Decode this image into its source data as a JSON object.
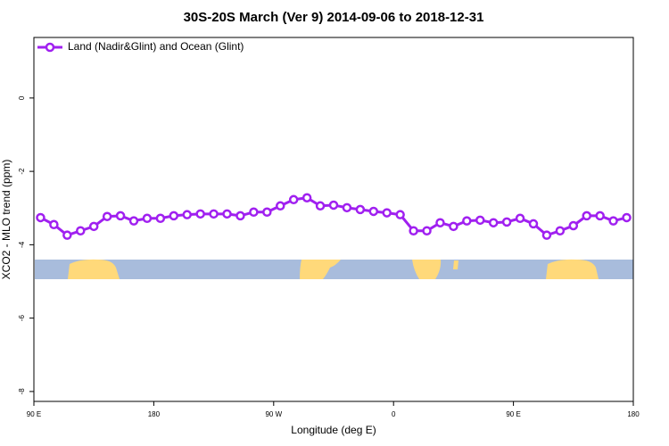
{
  "chart_data": {
    "type": "line",
    "title": "30S-20S March (Ver 9)   2014-09-06 to 2018-12-31",
    "x_label": "Longitude (deg E)",
    "y_label": "XCO2 - MLO trend (ppm)",
    "xlim": [
      90,
      540
    ],
    "xticks": [
      {
        "value": 90,
        "label": "90 E"
      },
      {
        "value": 180,
        "label": "180"
      },
      {
        "value": 270,
        "label": "90 W"
      },
      {
        "value": 360,
        "label": "0"
      },
      {
        "value": 450,
        "label": "90 E"
      },
      {
        "value": 540,
        "label": "180"
      }
    ],
    "ylim": [
      -8.27,
      1.65
    ],
    "yticks": [
      0,
      -2,
      -4,
      -6,
      -8
    ],
    "legend": "top-left",
    "x": [
      95,
      105,
      115,
      125,
      135,
      145,
      155,
      165,
      175,
      185,
      195,
      205,
      215,
      225,
      235,
      245,
      255,
      265,
      275,
      285,
      295,
      305,
      315,
      325,
      335,
      345,
      355,
      365,
      375,
      385,
      395,
      405,
      415,
      425,
      435,
      445,
      455,
      465,
      475,
      485,
      495,
      505,
      515,
      525,
      535
    ],
    "series": [
      {
        "name": "Land (Nadir&Glint) and Ocean (Glint)",
        "color": "#a020f0",
        "values": [
          -3.26,
          -3.45,
          -3.74,
          -3.62,
          -3.5,
          -3.23,
          -3.21,
          -3.35,
          -3.28,
          -3.28,
          -3.21,
          -3.18,
          -3.16,
          -3.16,
          -3.16,
          -3.21,
          -3.11,
          -3.11,
          -2.94,
          -2.77,
          -2.72,
          -2.94,
          -2.92,
          -2.99,
          -3.04,
          -3.09,
          -3.13,
          -3.18,
          -3.62,
          -3.62,
          -3.4,
          -3.5,
          -3.35,
          -3.33,
          -3.4,
          -3.38,
          -3.28,
          -3.43,
          -3.74,
          -3.62,
          -3.48,
          -3.21,
          -3.21,
          -3.35,
          -3.26
        ]
      }
    ]
  }
}
